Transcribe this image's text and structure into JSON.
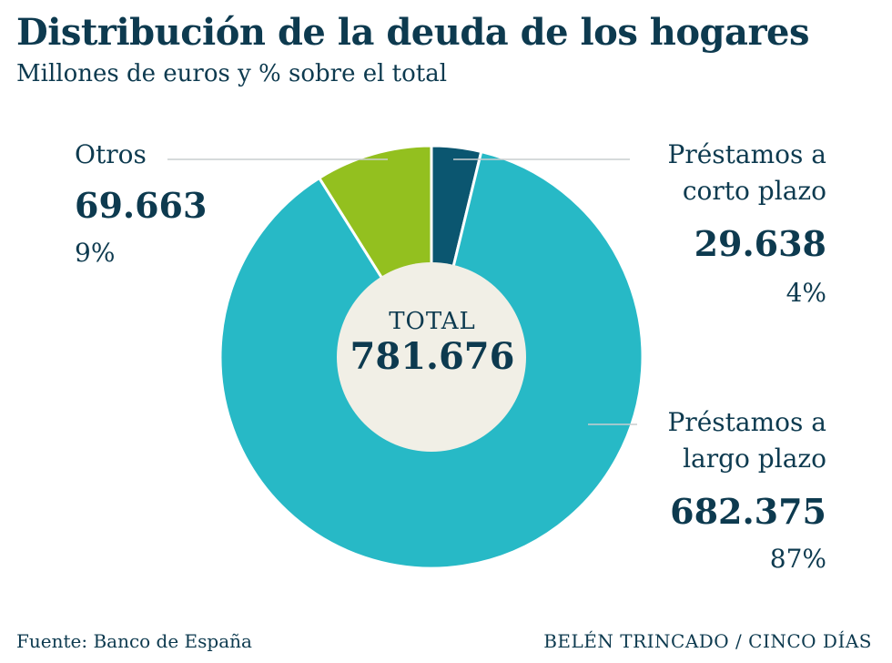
{
  "header": {
    "title": "Distribución de la deuda de los hogares",
    "subtitle": "Millones de euros y % sobre el total"
  },
  "chart_data": {
    "type": "pie",
    "variant": "donut",
    "title": "Distribución de la deuda de los hogares",
    "subtitle": "Millones de euros y % sobre el total",
    "center_label": "TOTAL",
    "total": "781.676",
    "total_value": 781676,
    "slices": [
      {
        "name": "Préstamos a corto plazo",
        "name_line1": "Préstamos a",
        "name_line2": "corto plazo",
        "value_label": "29.638",
        "value": 29638,
        "pct": 4,
        "pct_label": "4%",
        "color": "#0b5670"
      },
      {
        "name": "Préstamos a largo plazo",
        "name_line1": "Préstamos a",
        "name_line2": "largo plazo",
        "value_label": "682.375",
        "value": 682375,
        "pct": 87,
        "pct_label": "87%",
        "color": "#27b9c6"
      },
      {
        "name": "Otros",
        "value_label": "69.663",
        "value": 69663,
        "pct": 9,
        "pct_label": "9%",
        "color": "#93c01f"
      }
    ]
  },
  "footer": {
    "source": "Fuente: Banco de España",
    "credit": "BELÉN TRINCADO / CINCO DÍAS"
  },
  "colors": {
    "text": "#0d3a4f",
    "center": "#f1efe6",
    "leader": "#c9cdcf"
  }
}
